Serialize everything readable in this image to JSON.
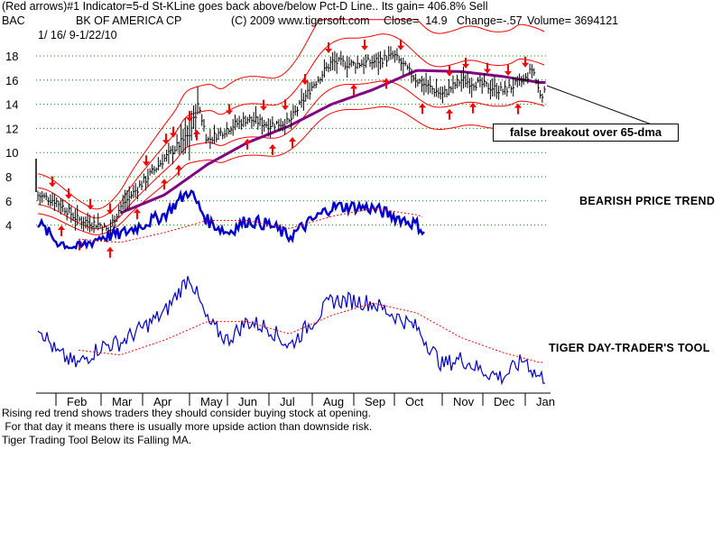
{
  "header": {
    "line1": "(Red arrows)#1 Indicator=5-d St-KLine goes back above/below Pct-D Line.. Its gain= 406.8% Sell",
    "ticker": "BAC",
    "company": "BK OF AMERICA CP",
    "copyright": "(C) 2009 www.tigersoft.com",
    "close": "Close=  14.9",
    "change": "Change=-.57",
    "volume": "Volume= 3694121",
    "date_range": "1/ 16/ 9-1/22/10"
  },
  "annotations": {
    "callout": "false breakout over 65-dma",
    "price_trend": "BEARISH PRICE TREND",
    "tool_label": "TIGER DAY-TRADER'S TOOL"
  },
  "footer": {
    "line1": "Rising red trend shows traders they should consider buying stock at opening.",
    "line2": " For that day it means there is usually more upside action than downside risk.",
    "line3": "Tiger Trading Tool Below its Falling MA."
  },
  "colors": {
    "ma65": "#800080",
    "bands": "#ff0000",
    "arrows": "#ff0000",
    "indicator": "#0000cc",
    "indicator_ma": "#ff0000",
    "price_bars": "#000000",
    "grid": "#008000"
  },
  "chart_data": [
    {
      "type": "line",
      "chart_title": "BK OF AMERICA CP",
      "ytick_labels": [
        "4",
        "6",
        "8",
        "10",
        "12",
        "14",
        "16",
        "18"
      ],
      "ylim": [
        3,
        20
      ],
      "grid": true,
      "series": [
        {
          "name": "BAC",
          "x": [
            "Jan 16",
            "Feb 1",
            "Feb 15",
            "Mar 1",
            "Mar 6",
            "Mar 15",
            "Apr 1",
            "Apr 15",
            "May 1",
            "May 8",
            "May 15",
            "Jun 1",
            "Jun 15",
            "Jul 1",
            "Jul 15",
            "Aug 1",
            "Aug 15",
            "Sep 1",
            "Sep 15",
            "Oct 1",
            "Oct 15",
            "Nov 1",
            "Nov 15",
            "Dec 1",
            "Dec 15",
            "Jan 1",
            "Jan 12",
            "Jan 22"
          ],
          "values": [
            6.5,
            6.0,
            4.5,
            4.0,
            3.5,
            5.5,
            7.5,
            9.5,
            11.5,
            14.0,
            11.0,
            12.0,
            12.8,
            12.3,
            12.5,
            15.5,
            17.5,
            17.3,
            17.5,
            18.0,
            16.0,
            14.8,
            16.0,
            15.6,
            15.1,
            16.0,
            17.0,
            14.9
          ]
        },
        {
          "name": "65-dma",
          "x": [
            "Jan 16",
            "Feb 15",
            "Mar 15",
            "Apr 15",
            "May 15",
            "Jun 15",
            "Jul 15",
            "Aug 15",
            "Sep 15",
            "Oct 15",
            "Nov 15",
            "Dec 15",
            "Jan 22"
          ],
          "values": [
            null,
            null,
            5.0,
            6.5,
            9.0,
            10.8,
            12.2,
            14.0,
            15.2,
            16.8,
            16.7,
            16.3,
            15.8
          ]
        }
      ]
    },
    {
      "type": "line",
      "x_tick_labels": [
        "Feb",
        "Mar",
        "Apr",
        "May",
        "Jun",
        "Jul",
        "Aug",
        "Sep",
        "Oct",
        "Nov",
        "Dec",
        "Jan"
      ],
      "ylim": [
        0,
        100
      ],
      "grid": false,
      "series": [
        {
          "name": "TIGER DAY-TRADER'S TOOL",
          "x": [
            "Jan 16",
            "Feb 1",
            "Feb 15",
            "Mar 1",
            "Mar 15",
            "Apr 1",
            "Apr 15",
            "May 1",
            "May 15",
            "Jun 1",
            "Jun 15",
            "Jul 1",
            "Jul 15",
            "Aug 1",
            "Aug 15",
            "Sep 1",
            "Sep 15",
            "Oct 1",
            "Oct 15",
            "Nov 1",
            "Nov 15",
            "Dec 1",
            "Dec 15",
            "Jan 1",
            "Jan 12",
            "Jan 22"
          ],
          "values": [
            55,
            30,
            20,
            35,
            38,
            50,
            62,
            92,
            55,
            40,
            55,
            50,
            35,
            55,
            72,
            72,
            70,
            60,
            50,
            20,
            25,
            15,
            10,
            25,
            15,
            10
          ]
        },
        {
          "name": "Moving average",
          "x": [
            "Jan 16",
            "Feb 15",
            "Mar 15",
            "Apr 15",
            "May 15",
            "Jun 15",
            "Jul 15",
            "Aug 15",
            "Sep 15",
            "Oct 15",
            "Nov 15",
            "Dec 15",
            "Jan 22"
          ],
          "values": [
            null,
            32,
            28,
            40,
            55,
            55,
            45,
            60,
            70,
            62,
            42,
            30,
            22
          ]
        }
      ]
    }
  ]
}
